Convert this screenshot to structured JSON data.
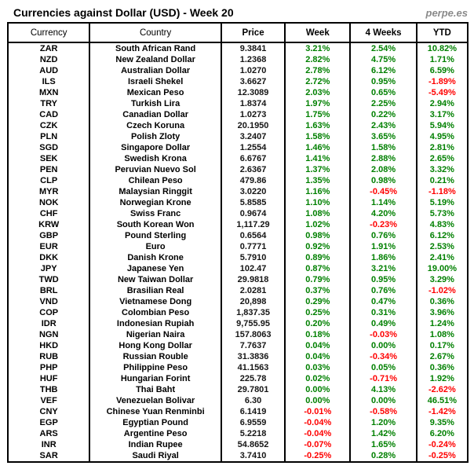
{
  "header": {
    "title": "Currencies against Dollar (USD) - Week 20",
    "brand": "perpe.es"
  },
  "colors": {
    "positive": "#008000",
    "negative": "#ff0000",
    "title_text": "#000000",
    "brand_text": "#8a8a8a",
    "border": "#000000"
  },
  "chart_data": {
    "type": "table",
    "title": "Currencies against Dollar (USD) - Week 20",
    "columns": [
      "Currency",
      "Country",
      "Price",
      "Week",
      "4 Weeks",
      "YTD"
    ],
    "rows": [
      [
        "ZAR",
        "South African Rand",
        "9.3841",
        "3.21%",
        "2.54%",
        "10.82%"
      ],
      [
        "NZD",
        "New Zealand Dollar",
        "1.2368",
        "2.82%",
        "4.75%",
        "1.71%"
      ],
      [
        "AUD",
        "Australian Dollar",
        "1.0270",
        "2.78%",
        "6.12%",
        "6.59%"
      ],
      [
        "ILS",
        "Israeli Shekel",
        "3.6627",
        "2.72%",
        "0.95%",
        "-1.89%"
      ],
      [
        "MXN",
        "Mexican Peso",
        "12.3089",
        "2.03%",
        "0.65%",
        "-5.49%"
      ],
      [
        "TRY",
        "Turkish Lira",
        "1.8374",
        "1.97%",
        "2.25%",
        "2.94%"
      ],
      [
        "CAD",
        "Canadian Dollar",
        "1.0273",
        "1.75%",
        "0.22%",
        "3.17%"
      ],
      [
        "CZK",
        "Czech Koruna",
        "20.1950",
        "1.63%",
        "2.43%",
        "5.94%"
      ],
      [
        "PLN",
        "Polish Zloty",
        "3.2407",
        "1.58%",
        "3.65%",
        "4.95%"
      ],
      [
        "SGD",
        "Singapore Dollar",
        "1.2554",
        "1.46%",
        "1.58%",
        "2.81%"
      ],
      [
        "SEK",
        "Swedish Krona",
        "6.6767",
        "1.41%",
        "2.88%",
        "2.65%"
      ],
      [
        "PEN",
        "Peruvian Nuevo Sol",
        "2.6367",
        "1.37%",
        "2.08%",
        "3.32%"
      ],
      [
        "CLP",
        "Chilean Peso",
        "479.86",
        "1.35%",
        "0.98%",
        "0.21%"
      ],
      [
        "MYR",
        "Malaysian Ringgit",
        "3.0220",
        "1.16%",
        "-0.45%",
        "-1.18%"
      ],
      [
        "NOK",
        "Norwegian Krone",
        "5.8585",
        "1.10%",
        "1.14%",
        "5.19%"
      ],
      [
        "CHF",
        "Swiss Franc",
        "0.9674",
        "1.08%",
        "4.20%",
        "5.73%"
      ],
      [
        "KRW",
        "South Korean Won",
        "1,117.29",
        "1.02%",
        "-0.23%",
        "4.83%"
      ],
      [
        "GBP",
        "Pound Sterling",
        "0.6564",
        "0.98%",
        "0.76%",
        "6.12%"
      ],
      [
        "EUR",
        "Euro",
        "0.7771",
        "0.92%",
        "1.91%",
        "2.53%"
      ],
      [
        "DKK",
        "Danish Krone",
        "5.7910",
        "0.89%",
        "1.86%",
        "2.41%"
      ],
      [
        "JPY",
        "Japanese Yen",
        "102.47",
        "0.87%",
        "3.21%",
        "19.00%"
      ],
      [
        "TWD",
        "New Taiwan Dollar",
        "29.9818",
        "0.79%",
        "0.95%",
        "3.29%"
      ],
      [
        "BRL",
        "Brasilian Real",
        "2.0281",
        "0.37%",
        "0.76%",
        "-1.02%"
      ],
      [
        "VND",
        "Vietnamese Dong",
        "20,898",
        "0.29%",
        "0.47%",
        "0.36%"
      ],
      [
        "COP",
        "Colombian Peso",
        "1,837.35",
        "0.25%",
        "0.31%",
        "3.96%"
      ],
      [
        "IDR",
        "Indonesian Rupiah",
        "9,755.95",
        "0.20%",
        "0.49%",
        "1.24%"
      ],
      [
        "NGN",
        "Nigerian Naira",
        "157.8063",
        "0.18%",
        "-0.03%",
        "1.08%"
      ],
      [
        "HKD",
        "Hong Kong Dollar",
        "7.7637",
        "0.04%",
        "0.00%",
        "0.17%"
      ],
      [
        "RUB",
        "Russian Rouble",
        "31.3836",
        "0.04%",
        "-0.34%",
        "2.67%"
      ],
      [
        "PHP",
        "Philippine Peso",
        "41.1563",
        "0.03%",
        "0.05%",
        "0.36%"
      ],
      [
        "HUF",
        "Hungarian Forint",
        "225.78",
        "0.02%",
        "-0.71%",
        "1.92%"
      ],
      [
        "THB",
        "Thai Baht",
        "29.7801",
        "0.00%",
        "4.13%",
        "-2.62%"
      ],
      [
        "VEF",
        "Venezuelan Bolivar",
        "6.30",
        "0.00%",
        "0.00%",
        "46.51%"
      ],
      [
        "CNY",
        "Chinese Yuan Renminbi",
        "6.1419",
        "-0.01%",
        "-0.58%",
        "-1.42%"
      ],
      [
        "EGP",
        "Egyptian Pound",
        "6.9559",
        "-0.04%",
        "1.20%",
        "9.35%"
      ],
      [
        "ARS",
        "Argentine Peso",
        "5.2218",
        "-0.04%",
        "1.42%",
        "6.20%"
      ],
      [
        "INR",
        "Indian Rupee",
        "54.8652",
        "-0.07%",
        "1.65%",
        "-0.24%"
      ],
      [
        "SAR",
        "Saudi Riyal",
        "3.7410",
        "-0.25%",
        "0.28%",
        "-0.25%"
      ]
    ]
  }
}
